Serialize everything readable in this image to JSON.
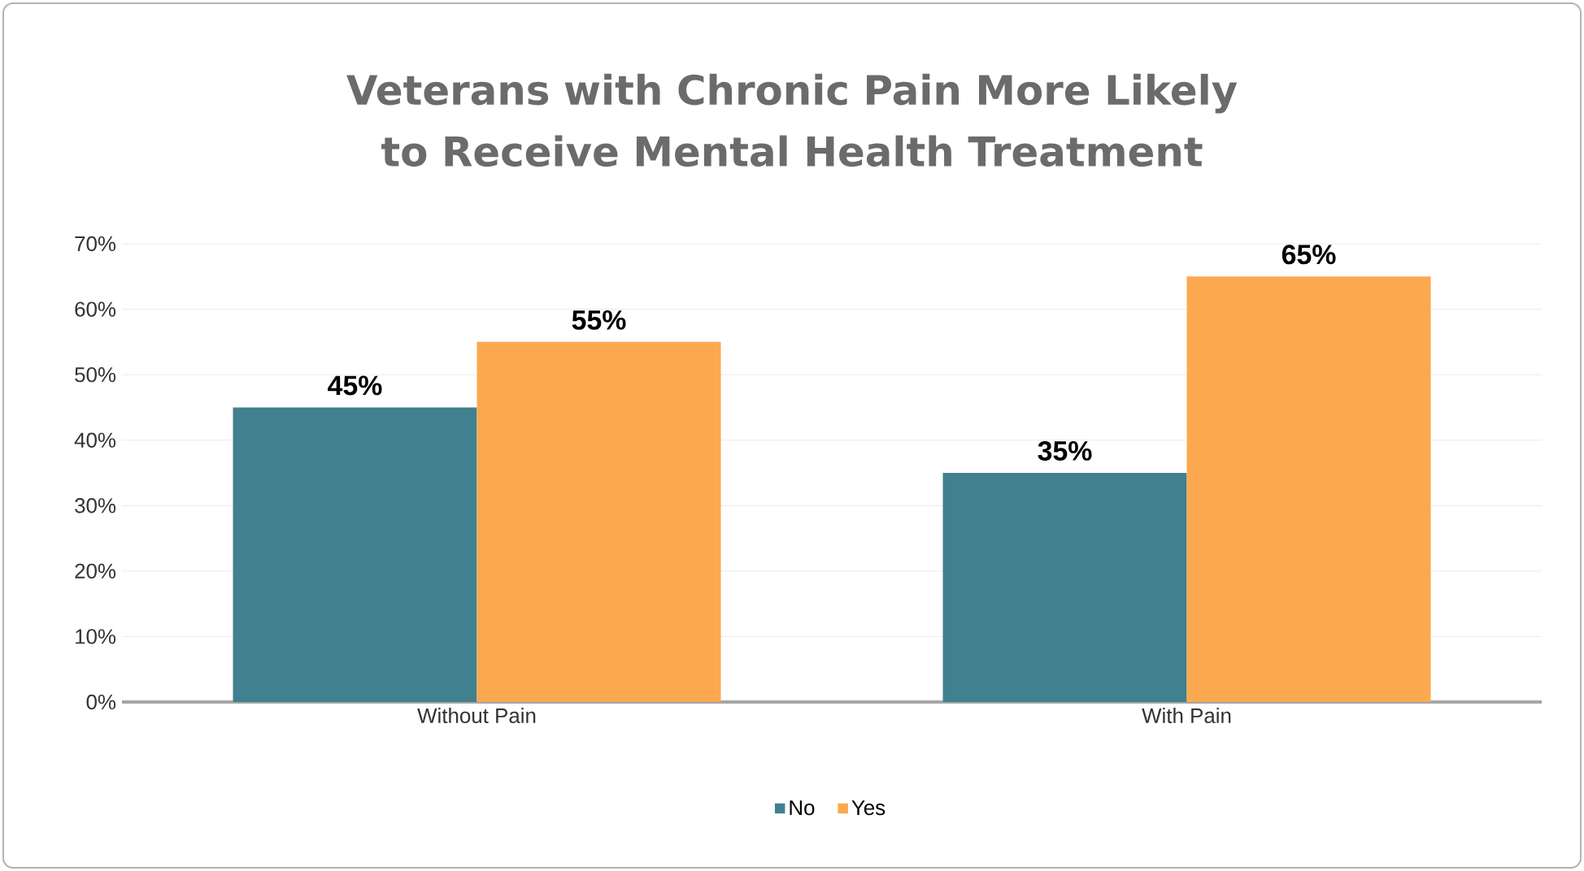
{
  "chart_data": {
    "type": "bar",
    "title": "Veterans with Chronic Pain More Likely to Receive Mental Health Treatment",
    "categories": [
      "Without Pain",
      "With Pain"
    ],
    "series": [
      {
        "name": "No",
        "color": "#41808f",
        "values": [
          45,
          35
        ]
      },
      {
        "name": "Yes",
        "color": "#fba84f",
        "values": [
          55,
          65
        ]
      }
    ],
    "ylim": [
      0,
      70
    ],
    "yticks": [
      {
        "value": 0,
        "label": "0%"
      },
      {
        "value": 10,
        "label": "10%"
      },
      {
        "value": 20,
        "label": "20%"
      },
      {
        "value": 30,
        "label": "30%"
      },
      {
        "value": 40,
        "label": "40%"
      },
      {
        "value": 50,
        "label": "50%"
      },
      {
        "value": 60,
        "label": "60%"
      },
      {
        "value": 70,
        "label": "70%"
      }
    ],
    "value_labels": [
      [
        "45%",
        "35%"
      ],
      [
        "55%",
        "65%"
      ]
    ],
    "grid": "y",
    "legend": "bottom"
  }
}
